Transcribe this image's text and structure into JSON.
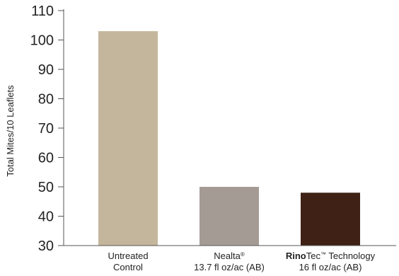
{
  "chart_data": {
    "type": "bar",
    "categories": [
      [
        "Untreated",
        "Control"
      ],
      [
        [
          "Nealta",
          "®"
        ],
        "13.7 fl oz/ac (AB)"
      ],
      [
        [
          "Rino",
          "Tec",
          "™",
          " Technology"
        ],
        "16 fl oz/ac (AB)"
      ]
    ],
    "values": [
      103,
      50,
      48
    ],
    "bar_colors": [
      "#c4b69c",
      "#a59b95",
      "#3f2215"
    ],
    "title": "",
    "xlabel": "",
    "ylabel": "Total Mites/10 Leaflets",
    "ylim": [
      30,
      110
    ],
    "yticks": [
      30,
      40,
      50,
      60,
      70,
      80,
      90,
      100,
      110
    ],
    "grid": false,
    "legend": "none"
  }
}
